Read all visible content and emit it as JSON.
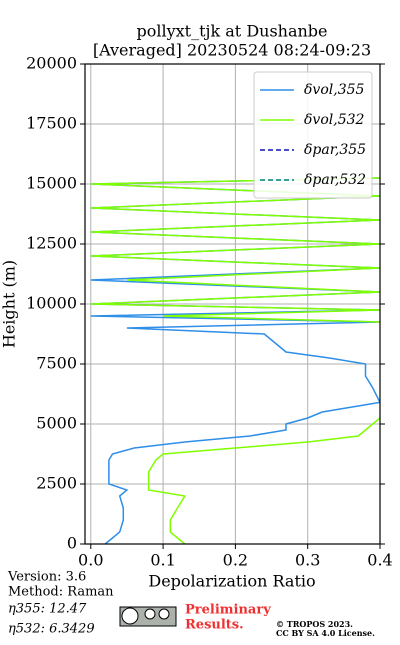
{
  "chart_data": {
    "type": "line",
    "title": "pollyxt_tjk at Dushanbe",
    "subtitle": "[Averaged] 20230524 08:24-09:23",
    "x_label": "Depolarization Ratio",
    "y_label": "Height (m)",
    "y": [
      0,
      250,
      500,
      1000,
      1500,
      2000,
      2250,
      2500,
      2750,
      3000,
      3500,
      3750,
      4000,
      4250,
      4500,
      4750,
      5000,
      5250,
      5500,
      5900,
      6500,
      7000,
      7500,
      7750,
      8000,
      8250,
      8500,
      8750,
      9000,
      9250,
      9500,
      9750,
      10000,
      10500,
      11000,
      11500,
      12000,
      12500,
      13000,
      13500,
      14000,
      14500,
      15000,
      15250
    ],
    "series": [
      {
        "name": "δvol,355",
        "color": "#2e8ee8",
        "dash": false,
        "values": [
          0.02,
          0.03,
          0.04,
          0.045,
          0.045,
          0.04,
          0.05,
          0.025,
          0.025,
          0.025,
          0.025,
          0.03,
          0.06,
          0.13,
          0.22,
          0.27,
          0.27,
          0.3,
          0.32,
          0.4,
          0.39,
          0.38,
          0.38,
          0.33,
          0.27,
          0.26,
          0.25,
          0.24,
          0.05,
          0.4,
          0,
          0.4,
          0,
          0.4,
          0,
          0.4,
          0,
          0.4,
          0,
          0.4,
          0,
          0.4,
          0,
          0.4
        ]
      },
      {
        "name": "δvol,532",
        "color": "#80ff00",
        "dash": false,
        "values": [
          0.13,
          0.12,
          0.11,
          0.11,
          0.12,
          0.13,
          0.08,
          0.08,
          0.08,
          0.08,
          0.09,
          0.1,
          0.2,
          0.3,
          0.37,
          0.38,
          0.39,
          0.4,
          null,
          null,
          null,
          null,
          null,
          null,
          null,
          null,
          null,
          null,
          null,
          0.4,
          0.1,
          0.4,
          0,
          0.4,
          0.05,
          0.4,
          0,
          0.4,
          0,
          0.4,
          0,
          0.4,
          0,
          0.4
        ]
      },
      {
        "name": "δpar,355",
        "color": "#1010b0",
        "dash": true,
        "values": [
          null,
          null,
          null,
          null,
          null,
          null,
          null,
          null,
          null,
          null,
          null,
          null,
          null,
          null,
          null,
          null,
          null,
          null,
          null,
          null,
          null,
          null,
          null,
          null,
          null,
          null,
          null,
          null,
          null,
          null,
          null,
          null,
          null,
          null,
          null,
          null,
          null,
          null,
          null,
          null,
          null,
          null,
          null,
          null
        ]
      },
      {
        "name": "δpar,532",
        "color": "#008080",
        "dash": true,
        "values": [
          null,
          null,
          null,
          null,
          null,
          null,
          null,
          null,
          null,
          null,
          null,
          null,
          null,
          null,
          null,
          null,
          null,
          null,
          null,
          null,
          null,
          null,
          null,
          null,
          null,
          null,
          null,
          null,
          null,
          null,
          null,
          null,
          null,
          null,
          null,
          null,
          null,
          null,
          null,
          null,
          null,
          null,
          null,
          null
        ]
      }
    ],
    "xlim": [
      -0.008,
      0.4
    ],
    "xticks": [
      {
        "value": 0,
        "label": "0.0"
      },
      0.1,
      0.2,
      0.3,
      0.4
    ],
    "ylim": [
      0,
      20000
    ],
    "yticks": [
      0,
      2500,
      5000,
      7500,
      10000,
      12500,
      15000,
      17500,
      20000
    ],
    "grid": true,
    "legend": "upper right"
  },
  "footer": {
    "version": "Version: 3.6",
    "method": "Method: Raman",
    "eta355": "η355:  12.47",
    "eta532": "η532: 6.3429",
    "preliminary": "Preliminary",
    "results": "Results.",
    "copyright": "© TROPOS 2023.",
    "license": "CC BY SA 4.0 License."
  }
}
